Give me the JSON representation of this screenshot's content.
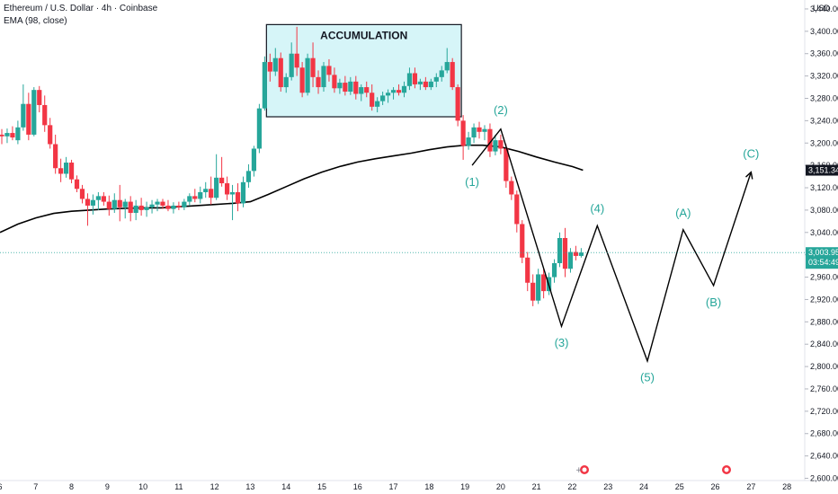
{
  "header": {
    "symbol_line": "Ethereum / U.S. Dollar · 4h · Coinbase",
    "indicator_line": "EMA (98, close)"
  },
  "axis": {
    "currency": "USD",
    "price_ticks": [
      "3,440.00",
      "3,400.00",
      "3,360.00",
      "3,320.00",
      "3,280.00",
      "3,240.00",
      "3,200.00",
      "3,160.00",
      "3,120.00",
      "3,080.00",
      "3,040.00",
      "3,000.00",
      "2,960.00",
      "2,920.00",
      "2,880.00",
      "2,840.00",
      "2,800.00",
      "2,760.00",
      "2,720.00",
      "2,680.00",
      "2,640.00",
      "2,600.00"
    ],
    "date_ticks": [
      "6",
      "7",
      "8",
      "9",
      "10",
      "11",
      "12",
      "13",
      "14",
      "15",
      "16",
      "17",
      "18",
      "19",
      "20",
      "21",
      "22",
      "23",
      "24",
      "25",
      "26",
      "27",
      "28"
    ]
  },
  "price_tags": {
    "ema": "3,151.34",
    "last": "3,003.95",
    "countdown": "03:54:49"
  },
  "colors": {
    "up": "#26a69a",
    "down": "#f23645",
    "ema": "#000000",
    "box_fill": "#d6f5f8",
    "wave": "#000000",
    "wave_label": "#26a69a",
    "last_tag": "#26a69a",
    "ema_tag": "#131722"
  },
  "chart_data": {
    "type": "candlestick",
    "ylim": [
      2596,
      3456
    ],
    "xlim": [
      6.0,
      28.5
    ],
    "ema_value": 3151.34,
    "last_price": 3003.95,
    "candles": [
      {
        "x": 6.05,
        "o": 3215,
        "h": 3225,
        "l": 3198,
        "c": 3212
      },
      {
        "x": 6.2,
        "o": 3212,
        "h": 3226,
        "l": 3200,
        "c": 3218
      },
      {
        "x": 6.35,
        "o": 3218,
        "h": 3230,
        "l": 3205,
        "c": 3210
      },
      {
        "x": 6.5,
        "o": 3205,
        "h": 3240,
        "l": 3198,
        "c": 3228
      },
      {
        "x": 6.65,
        "o": 3228,
        "h": 3305,
        "l": 3222,
        "c": 3270
      },
      {
        "x": 6.8,
        "o": 3270,
        "h": 3290,
        "l": 3205,
        "c": 3215
      },
      {
        "x": 6.95,
        "o": 3215,
        "h": 3300,
        "l": 3212,
        "c": 3295
      },
      {
        "x": 7.1,
        "o": 3295,
        "h": 3302,
        "l": 3255,
        "c": 3268
      },
      {
        "x": 7.25,
        "o": 3268,
        "h": 3285,
        "l": 3220,
        "c": 3232
      },
      {
        "x": 7.4,
        "o": 3232,
        "h": 3245,
        "l": 3190,
        "c": 3198
      },
      {
        "x": 7.55,
        "o": 3198,
        "h": 3215,
        "l": 3145,
        "c": 3155
      },
      {
        "x": 7.7,
        "o": 3155,
        "h": 3172,
        "l": 3130,
        "c": 3145
      },
      {
        "x": 7.85,
        "o": 3145,
        "h": 3175,
        "l": 3138,
        "c": 3165
      },
      {
        "x": 8.0,
        "o": 3165,
        "h": 3170,
        "l": 3128,
        "c": 3135
      },
      {
        "x": 8.15,
        "o": 3135,
        "h": 3142,
        "l": 3112,
        "c": 3118
      },
      {
        "x": 8.3,
        "o": 3118,
        "h": 3125,
        "l": 3092,
        "c": 3100
      },
      {
        "x": 8.45,
        "o": 3100,
        "h": 3110,
        "l": 3052,
        "c": 3088
      },
      {
        "x": 8.6,
        "o": 3088,
        "h": 3108,
        "l": 3072,
        "c": 3098
      },
      {
        "x": 8.75,
        "o": 3098,
        "h": 3112,
        "l": 3080,
        "c": 3105
      },
      {
        "x": 8.9,
        "o": 3105,
        "h": 3112,
        "l": 3088,
        "c": 3095
      },
      {
        "x": 9.05,
        "o": 3095,
        "h": 3106,
        "l": 3070,
        "c": 3082
      },
      {
        "x": 9.2,
        "o": 3082,
        "h": 3110,
        "l": 3075,
        "c": 3098
      },
      {
        "x": 9.35,
        "o": 3098,
        "h": 3125,
        "l": 3060,
        "c": 3085
      },
      {
        "x": 9.5,
        "o": 3085,
        "h": 3100,
        "l": 3065,
        "c": 3095
      },
      {
        "x": 9.65,
        "o": 3095,
        "h": 3105,
        "l": 3060,
        "c": 3075
      },
      {
        "x": 9.8,
        "o": 3075,
        "h": 3098,
        "l": 3062,
        "c": 3088
      },
      {
        "x": 9.95,
        "o": 3088,
        "h": 3102,
        "l": 3070,
        "c": 3080
      },
      {
        "x": 10.1,
        "o": 3080,
        "h": 3095,
        "l": 3068,
        "c": 3085
      },
      {
        "x": 10.25,
        "o": 3085,
        "h": 3098,
        "l": 3074,
        "c": 3090
      },
      {
        "x": 10.4,
        "o": 3090,
        "h": 3100,
        "l": 3078,
        "c": 3095
      },
      {
        "x": 10.55,
        "o": 3095,
        "h": 3100,
        "l": 3082,
        "c": 3088
      },
      {
        "x": 10.7,
        "o": 3088,
        "h": 3098,
        "l": 3078,
        "c": 3082
      },
      {
        "x": 10.85,
        "o": 3082,
        "h": 3094,
        "l": 3074,
        "c": 3088
      },
      {
        "x": 11.0,
        "o": 3088,
        "h": 3095,
        "l": 3080,
        "c": 3085
      },
      {
        "x": 11.15,
        "o": 3085,
        "h": 3100,
        "l": 3080,
        "c": 3095
      },
      {
        "x": 11.3,
        "o": 3095,
        "h": 3110,
        "l": 3088,
        "c": 3105
      },
      {
        "x": 11.45,
        "o": 3105,
        "h": 3118,
        "l": 3094,
        "c": 3100
      },
      {
        "x": 11.6,
        "o": 3100,
        "h": 3122,
        "l": 3092,
        "c": 3112
      },
      {
        "x": 11.75,
        "o": 3112,
        "h": 3130,
        "l": 3102,
        "c": 3118
      },
      {
        "x": 11.9,
        "o": 3118,
        "h": 3140,
        "l": 3090,
        "c": 3102
      },
      {
        "x": 12.05,
        "o": 3102,
        "h": 3180,
        "l": 3098,
        "c": 3138
      },
      {
        "x": 12.2,
        "o": 3138,
        "h": 3175,
        "l": 3122,
        "c": 3128
      },
      {
        "x": 12.35,
        "o": 3128,
        "h": 3140,
        "l": 3098,
        "c": 3108
      },
      {
        "x": 12.5,
        "o": 3108,
        "h": 3125,
        "l": 3062,
        "c": 3112
      },
      {
        "x": 12.65,
        "o": 3112,
        "h": 3128,
        "l": 3078,
        "c": 3092
      },
      {
        "x": 12.8,
        "o": 3092,
        "h": 3140,
        "l": 3085,
        "c": 3130
      },
      {
        "x": 12.95,
        "o": 3130,
        "h": 3162,
        "l": 3120,
        "c": 3150
      },
      {
        "x": 13.1,
        "o": 3150,
        "h": 3195,
        "l": 3140,
        "c": 3190
      },
      {
        "x": 13.25,
        "o": 3190,
        "h": 3270,
        "l": 3182,
        "c": 3262
      },
      {
        "x": 13.4,
        "o": 3262,
        "h": 3355,
        "l": 3258,
        "c": 3345
      },
      {
        "x": 13.55,
        "o": 3345,
        "h": 3360,
        "l": 3310,
        "c": 3328
      },
      {
        "x": 13.7,
        "o": 3328,
        "h": 3370,
        "l": 3320,
        "c": 3352
      },
      {
        "x": 13.85,
        "o": 3352,
        "h": 3362,
        "l": 3292,
        "c": 3300
      },
      {
        "x": 14.0,
        "o": 3300,
        "h": 3325,
        "l": 3290,
        "c": 3318
      },
      {
        "x": 14.15,
        "o": 3318,
        "h": 3380,
        "l": 3312,
        "c": 3360
      },
      {
        "x": 14.3,
        "o": 3360,
        "h": 3408,
        "l": 3320,
        "c": 3335
      },
      {
        "x": 14.45,
        "o": 3335,
        "h": 3345,
        "l": 3282,
        "c": 3290
      },
      {
        "x": 14.6,
        "o": 3290,
        "h": 3360,
        "l": 3285,
        "c": 3352
      },
      {
        "x": 14.75,
        "o": 3352,
        "h": 3380,
        "l": 3300,
        "c": 3318
      },
      {
        "x": 14.9,
        "o": 3318,
        "h": 3330,
        "l": 3288,
        "c": 3300
      },
      {
        "x": 15.05,
        "o": 3300,
        "h": 3345,
        "l": 3292,
        "c": 3338
      },
      {
        "x": 15.2,
        "o": 3338,
        "h": 3350,
        "l": 3310,
        "c": 3322
      },
      {
        "x": 15.35,
        "o": 3322,
        "h": 3335,
        "l": 3290,
        "c": 3298
      },
      {
        "x": 15.5,
        "o": 3298,
        "h": 3315,
        "l": 3288,
        "c": 3308
      },
      {
        "x": 15.65,
        "o": 3308,
        "h": 3320,
        "l": 3285,
        "c": 3292
      },
      {
        "x": 15.8,
        "o": 3292,
        "h": 3318,
        "l": 3286,
        "c": 3310
      },
      {
        "x": 15.95,
        "o": 3310,
        "h": 3320,
        "l": 3278,
        "c": 3288
      },
      {
        "x": 16.1,
        "o": 3288,
        "h": 3305,
        "l": 3275,
        "c": 3300
      },
      {
        "x": 16.25,
        "o": 3300,
        "h": 3310,
        "l": 3282,
        "c": 3290
      },
      {
        "x": 16.4,
        "o": 3290,
        "h": 3305,
        "l": 3258,
        "c": 3265
      },
      {
        "x": 16.55,
        "o": 3265,
        "h": 3282,
        "l": 3255,
        "c": 3275
      },
      {
        "x": 16.7,
        "o": 3275,
        "h": 3292,
        "l": 3268,
        "c": 3285
      },
      {
        "x": 16.85,
        "o": 3285,
        "h": 3296,
        "l": 3272,
        "c": 3290
      },
      {
        "x": 17.0,
        "o": 3290,
        "h": 3300,
        "l": 3278,
        "c": 3295
      },
      {
        "x": 17.15,
        "o": 3295,
        "h": 3305,
        "l": 3285,
        "c": 3290
      },
      {
        "x": 17.3,
        "o": 3290,
        "h": 3310,
        "l": 3282,
        "c": 3302
      },
      {
        "x": 17.45,
        "o": 3302,
        "h": 3335,
        "l": 3295,
        "c": 3325
      },
      {
        "x": 17.6,
        "o": 3325,
        "h": 3335,
        "l": 3298,
        "c": 3305
      },
      {
        "x": 17.75,
        "o": 3305,
        "h": 3315,
        "l": 3295,
        "c": 3310
      },
      {
        "x": 17.9,
        "o": 3310,
        "h": 3318,
        "l": 3295,
        "c": 3300
      },
      {
        "x": 18.05,
        "o": 3300,
        "h": 3315,
        "l": 3295,
        "c": 3310
      },
      {
        "x": 18.2,
        "o": 3310,
        "h": 3325,
        "l": 3300,
        "c": 3318
      },
      {
        "x": 18.35,
        "o": 3318,
        "h": 3338,
        "l": 3310,
        "c": 3330
      },
      {
        "x": 18.5,
        "o": 3330,
        "h": 3370,
        "l": 3325,
        "c": 3345
      },
      {
        "x": 18.65,
        "o": 3345,
        "h": 3352,
        "l": 3295,
        "c": 3300
      },
      {
        "x": 18.8,
        "o": 3300,
        "h": 3305,
        "l": 3230,
        "c": 3240
      },
      {
        "x": 18.95,
        "o": 3240,
        "h": 3250,
        "l": 3170,
        "c": 3195
      },
      {
        "x": 19.1,
        "o": 3195,
        "h": 3220,
        "l": 3188,
        "c": 3210
      },
      {
        "x": 19.25,
        "o": 3210,
        "h": 3235,
        "l": 3200,
        "c": 3228
      },
      {
        "x": 19.4,
        "o": 3228,
        "h": 3238,
        "l": 3208,
        "c": 3220
      },
      {
        "x": 19.55,
        "o": 3220,
        "h": 3232,
        "l": 3205,
        "c": 3225
      },
      {
        "x": 19.7,
        "o": 3225,
        "h": 3235,
        "l": 3175,
        "c": 3185
      },
      {
        "x": 19.85,
        "o": 3185,
        "h": 3215,
        "l": 3178,
        "c": 3205
      },
      {
        "x": 20.0,
        "o": 3205,
        "h": 3215,
        "l": 3180,
        "c": 3190
      },
      {
        "x": 20.15,
        "o": 3190,
        "h": 3198,
        "l": 3120,
        "c": 3132
      },
      {
        "x": 20.3,
        "o": 3132,
        "h": 3140,
        "l": 3098,
        "c": 3108
      },
      {
        "x": 20.45,
        "o": 3108,
        "h": 3115,
        "l": 3040,
        "c": 3055
      },
      {
        "x": 20.6,
        "o": 3055,
        "h": 3062,
        "l": 2985,
        "c": 2995
      },
      {
        "x": 20.75,
        "o": 2995,
        "h": 3005,
        "l": 2935,
        "c": 2950
      },
      {
        "x": 20.9,
        "o": 2950,
        "h": 2965,
        "l": 2908,
        "c": 2918
      },
      {
        "x": 21.05,
        "o": 2918,
        "h": 2975,
        "l": 2912,
        "c": 2965
      },
      {
        "x": 21.2,
        "o": 2965,
        "h": 2975,
        "l": 2922,
        "c": 2935
      },
      {
        "x": 21.35,
        "o": 2935,
        "h": 2968,
        "l": 2928,
        "c": 2960
      },
      {
        "x": 21.5,
        "o": 2960,
        "h": 2992,
        "l": 2950,
        "c": 2985
      },
      {
        "x": 21.65,
        "o": 2985,
        "h": 3040,
        "l": 2978,
        "c": 3030
      },
      {
        "x": 21.8,
        "o": 3030,
        "h": 3048,
        "l": 2960,
        "c": 2975
      },
      {
        "x": 21.95,
        "o": 2975,
        "h": 3012,
        "l": 2968,
        "c": 3005
      },
      {
        "x": 22.1,
        "o": 3005,
        "h": 3016,
        "l": 2990,
        "c": 2998
      },
      {
        "x": 22.25,
        "o": 2998,
        "h": 3012,
        "l": 2995,
        "c": 3004
      }
    ],
    "ema": [
      {
        "x": 6.0,
        "y": 3040
      },
      {
        "x": 6.5,
        "y": 3055
      },
      {
        "x": 7.0,
        "y": 3066
      },
      {
        "x": 7.5,
        "y": 3074
      },
      {
        "x": 8.0,
        "y": 3078
      },
      {
        "x": 8.5,
        "y": 3080
      },
      {
        "x": 9.0,
        "y": 3082
      },
      {
        "x": 9.5,
        "y": 3083
      },
      {
        "x": 10.0,
        "y": 3084
      },
      {
        "x": 10.5,
        "y": 3084
      },
      {
        "x": 11.0,
        "y": 3086
      },
      {
        "x": 11.5,
        "y": 3088
      },
      {
        "x": 12.0,
        "y": 3090
      },
      {
        "x": 12.5,
        "y": 3092
      },
      {
        "x": 13.0,
        "y": 3095
      },
      {
        "x": 13.5,
        "y": 3108
      },
      {
        "x": 14.0,
        "y": 3122
      },
      {
        "x": 14.5,
        "y": 3136
      },
      {
        "x": 15.0,
        "y": 3148
      },
      {
        "x": 15.5,
        "y": 3158
      },
      {
        "x": 16.0,
        "y": 3166
      },
      {
        "x": 16.5,
        "y": 3172
      },
      {
        "x": 17.0,
        "y": 3177
      },
      {
        "x": 17.5,
        "y": 3182
      },
      {
        "x": 18.0,
        "y": 3188
      },
      {
        "x": 18.5,
        "y": 3193
      },
      {
        "x": 19.0,
        "y": 3196
      },
      {
        "x": 19.5,
        "y": 3196
      },
      {
        "x": 20.0,
        "y": 3193
      },
      {
        "x": 20.5,
        "y": 3185
      },
      {
        "x": 21.0,
        "y": 3175
      },
      {
        "x": 21.5,
        "y": 3166
      },
      {
        "x": 22.0,
        "y": 3158
      },
      {
        "x": 22.3,
        "y": 3151.34
      }
    ],
    "accumulation_box": {
      "label": "ACCUMULATION",
      "x0": 13.45,
      "x1": 18.9,
      "y0": 3247,
      "y1": 3412
    },
    "wave_path": [
      {
        "x": 19.2,
        "y": 3160
      },
      {
        "x": 20.0,
        "y": 3225
      },
      {
        "x": 21.7,
        "y": 2872
      },
      {
        "x": 22.7,
        "y": 3052
      },
      {
        "x": 24.1,
        "y": 2810
      },
      {
        "x": 25.1,
        "y": 3045
      },
      {
        "x": 25.95,
        "y": 2945
      },
      {
        "x": 27.0,
        "y": 3148
      }
    ],
    "wave_labels": [
      {
        "text": "(1)",
        "x": 19.2,
        "y": 3130
      },
      {
        "text": "(2)",
        "x": 20.0,
        "y": 3258
      },
      {
        "text": "(3)",
        "x": 21.7,
        "y": 2842
      },
      {
        "text": "(4)",
        "x": 22.7,
        "y": 3082
      },
      {
        "text": "(5)",
        "x": 24.1,
        "y": 2780
      },
      {
        "text": "(A)",
        "x": 25.1,
        "y": 3074
      },
      {
        "text": "(B)",
        "x": 25.95,
        "y": 2914
      },
      {
        "text": "(C)",
        "x": 27.0,
        "y": 3180
      }
    ]
  }
}
